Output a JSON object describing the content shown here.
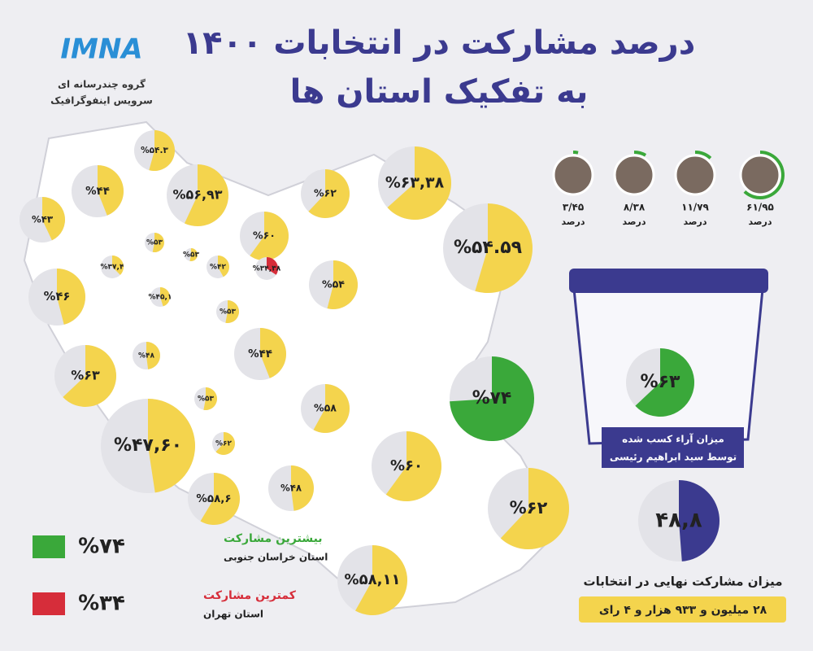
{
  "header": {
    "logo": "IMNA",
    "agency_line1": "گروه چندرسانه ای",
    "agency_line2": "سرویس اینفوگرافیک",
    "title_line1": "درصد مشارکت در انتخابات ۱۴۰۰",
    "title_line2": "به تفکیک استان ها"
  },
  "provinces": [
    {
      "value": 54.3,
      "label": "%۵۴.۳"
    },
    {
      "value": 44,
      "label": "%۴۴"
    },
    {
      "value": 56.93,
      "label": "%۵۶,۹۳"
    },
    {
      "value": 62,
      "label": "%۶۲"
    },
    {
      "value": 63.38,
      "label": "%۶۳,۳۸"
    },
    {
      "value": 43,
      "label": "%۴۳"
    },
    {
      "value": 60,
      "label": "%۶۰"
    },
    {
      "value": 54.59,
      "label": "%۵۴.۵۹"
    },
    {
      "value": 53,
      "label": "%۵۳"
    },
    {
      "value": 53,
      "label": "%۵۳"
    },
    {
      "value": 37.4,
      "label": "%۳۷,۴"
    },
    {
      "value": 42,
      "label": "%۴۲"
    },
    {
      "value": 34.38,
      "label": "%۳۴,۳۸"
    },
    {
      "value": 54,
      "label": "%۵۴"
    },
    {
      "value": 46,
      "label": "%۴۶"
    },
    {
      "value": 45.1,
      "label": "%۴۵,۱"
    },
    {
      "value": 53,
      "label": "%۵۳"
    },
    {
      "value": 44,
      "label": "%۴۴"
    },
    {
      "value": 48,
      "label": "%۴۸"
    },
    {
      "value": 63,
      "label": "%۶۳"
    },
    {
      "value": 74,
      "label": "%۷۴"
    },
    {
      "value": 53,
      "label": "%۵۳"
    },
    {
      "value": 58,
      "label": "%۵۸"
    },
    {
      "value": 47.6,
      "label": "%۴۷,۶۰"
    },
    {
      "value": 62,
      "label": "%۶۲"
    },
    {
      "value": 60,
      "label": "%۶۰"
    },
    {
      "value": 58.6,
      "label": "%۵۸,۶"
    },
    {
      "value": 48,
      "label": "%۴۸"
    },
    {
      "value": 62,
      "label": "%۶۲"
    },
    {
      "value": 58.11,
      "label": "%۵۸,۱۱"
    }
  ],
  "candidates": [
    {
      "value": 61.95,
      "label": "۶۱/۹۵"
    },
    {
      "value": 11.79,
      "label": "۱۱/۷۹"
    },
    {
      "value": 8.38,
      "label": "۸/۳۸"
    },
    {
      "value": 3.45,
      "label": "۳/۴۵"
    }
  ],
  "unit": "درصد",
  "winner": {
    "value": 63,
    "label": "%۶۳",
    "caption1": "میزان آراء کسب شده",
    "caption2": "توسط سید ابراهیم رئیسی"
  },
  "national": {
    "value": 48.8,
    "label": "۴۸,۸",
    "caption": "میزان مشارکت نهایی در انتخابات",
    "votes": "۲۸ میلیون و ۹۳۳ هزار و ۴ رای"
  },
  "legend": {
    "max_title": "بیشترین مشارکت",
    "max_value": "%۷۴",
    "max_province": "استان خراسان جنوبی",
    "min_title": "کمترین مشارکت",
    "min_value": "%۳۴",
    "min_province": "استان تهران"
  }
}
